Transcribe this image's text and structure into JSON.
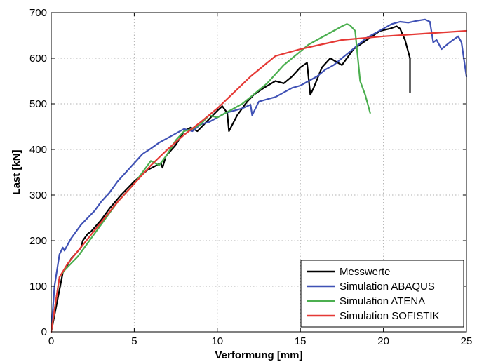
{
  "chart_data": {
    "type": "line",
    "xlabel": "Verformung [mm]",
    "ylabel": "Last [kN]",
    "xlim": [
      0,
      25
    ],
    "ylim": [
      0,
      700
    ],
    "xticks": [
      "0",
      "5",
      "10",
      "15",
      "20",
      "25"
    ],
    "yticks": [
      "0",
      "100",
      "200",
      "300",
      "400",
      "500",
      "600",
      "700"
    ],
    "grid": true,
    "legend_position": "bottom-right",
    "series": [
      {
        "name": "Messwerte",
        "color": "#000000",
        "x": [
          0,
          0.7,
          1.2,
          1.8,
          1.9,
          2.2,
          2.4,
          3.0,
          3.5,
          4.2,
          5.0,
          5.8,
          6.6,
          6.7,
          6.9,
          7.5,
          8.0,
          8.4,
          8.8,
          9.2,
          9.6,
          10.0,
          10.3,
          10.6,
          10.7,
          11.2,
          11.5,
          11.8,
          12.2,
          12.8,
          13.5,
          14.0,
          14.5,
          15.0,
          15.4,
          15.6,
          15.8,
          16.3,
          16.8,
          17.5,
          18.2,
          19.0,
          19.8,
          20.4,
          20.8,
          21.0,
          21.3,
          21.6,
          21.6
        ],
        "y": [
          0,
          130,
          160,
          185,
          200,
          215,
          220,
          245,
          270,
          300,
          330,
          355,
          370,
          360,
          385,
          410,
          440,
          448,
          440,
          455,
          470,
          485,
          495,
          480,
          440,
          475,
          490,
          505,
          520,
          535,
          550,
          545,
          560,
          580,
          590,
          520,
          535,
          580,
          600,
          585,
          620,
          640,
          660,
          665,
          670,
          665,
          640,
          600,
          525
        ]
      },
      {
        "name": "Simulation ABAQUS",
        "color": "#3f51b5",
        "x": [
          0,
          0.2,
          0.5,
          0.7,
          0.8,
          1.0,
          1.2,
          1.5,
          1.8,
          2.2,
          2.6,
          3.0,
          3.5,
          4.0,
          4.5,
          5.0,
          5.5,
          6.0,
          6.5,
          7.0,
          7.5,
          8.0,
          8.5,
          9.0,
          9.5,
          10.0,
          10.5,
          11.0,
          11.5,
          12.0,
          12.1,
          12.5,
          13.0,
          13.5,
          14.0,
          14.5,
          15.0,
          15.5,
          16.0,
          16.5,
          17.0,
          17.5,
          18.0,
          18.5,
          19.0,
          19.5,
          20.0,
          20.5,
          21.0,
          21.5,
          22.0,
          22.5,
          22.8,
          23.0,
          23.2,
          23.5,
          24.0,
          24.5,
          24.7,
          25.0
        ],
        "y": [
          0,
          100,
          170,
          185,
          178,
          192,
          205,
          220,
          235,
          250,
          265,
          285,
          305,
          330,
          350,
          370,
          390,
          402,
          415,
          425,
          435,
          445,
          440,
          455,
          460,
          470,
          480,
          485,
          490,
          498,
          475,
          505,
          510,
          515,
          525,
          535,
          540,
          550,
          560,
          575,
          585,
          600,
          615,
          630,
          645,
          655,
          665,
          675,
          680,
          678,
          682,
          685,
          680,
          635,
          640,
          620,
          635,
          648,
          635,
          560
        ]
      },
      {
        "name": "Simulation ATENA",
        "color": "#4caf50",
        "x": [
          0,
          0.5,
          0.8,
          1.2,
          1.6,
          2.0,
          2.5,
          3.0,
          3.5,
          4.0,
          4.5,
          5.0,
          5.5,
          6.0,
          6.5,
          7.0,
          7.5,
          8.0,
          8.5,
          9.0,
          9.5,
          10.0,
          10.5,
          11.0,
          11.5,
          12.0,
          12.5,
          13.0,
          13.5,
          14.0,
          14.5,
          15.0,
          15.5,
          16.0,
          16.5,
          17.0,
          17.5,
          17.8,
          18.0,
          18.3,
          18.6,
          18.9,
          19.2
        ],
        "y": [
          0,
          120,
          135,
          150,
          165,
          185,
          210,
          235,
          260,
          285,
          305,
          325,
          350,
          375,
          365,
          390,
          420,
          440,
          445,
          455,
          475,
          470,
          480,
          490,
          500,
          515,
          530,
          545,
          565,
          585,
          600,
          615,
          630,
          640,
          650,
          660,
          670,
          675,
          672,
          660,
          550,
          520,
          480
        ]
      },
      {
        "name": "Simulation SOFISTIK",
        "color": "#e53935",
        "x": [
          0,
          0.5,
          1.0,
          2.0,
          3.0,
          4.0,
          5.0,
          6.0,
          7.0,
          8.0,
          9.0,
          10.0,
          11.0,
          12.0,
          13.5,
          15.0,
          17.5,
          20.0,
          22.5,
          25.0
        ],
        "y": [
          0,
          120,
          150,
          195,
          240,
          285,
          325,
          365,
          400,
          432,
          460,
          490,
          525,
          560,
          605,
          620,
          640,
          648,
          654,
          660
        ]
      }
    ]
  }
}
